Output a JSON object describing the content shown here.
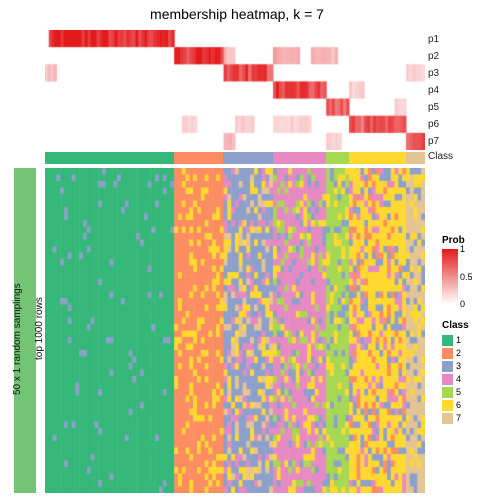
{
  "title": "membership heatmap, k = 7",
  "left_outer_label": "50 x 1 random samplings",
  "left_inner_label": "top 1000 rows",
  "row_labels": [
    "p1",
    "p2",
    "p3",
    "p4",
    "p5",
    "p6",
    "p7",
    "Class"
  ],
  "class_colors": {
    "1": "#35b779",
    "2": "#fc8d62",
    "3": "#8da0cb",
    "4": "#e78ac3",
    "5": "#a6d854",
    "6": "#ffd92f",
    "7": "#e5c494"
  },
  "prob_colorscale": {
    "low": "#ffffff",
    "high": "#e31a1c",
    "ticks": [
      "0",
      "0.5",
      "1"
    ]
  },
  "legend_prob_title": "Prob",
  "legend_class_title": "Class",
  "legend_class_labels": [
    "1",
    "2",
    "3",
    "4",
    "5",
    "6",
    "7"
  ],
  "column_classes": [
    1,
    1,
    1,
    1,
    1,
    1,
    1,
    1,
    1,
    1,
    1,
    1,
    1,
    1,
    1,
    1,
    1,
    1,
    1,
    1,
    1,
    1,
    1,
    1,
    1,
    1,
    1,
    1,
    1,
    1,
    1,
    1,
    1,
    1,
    2,
    2,
    2,
    2,
    2,
    2,
    2,
    2,
    2,
    2,
    2,
    2,
    2,
    3,
    3,
    3,
    3,
    3,
    3,
    3,
    3,
    3,
    3,
    3,
    3,
    3,
    4,
    4,
    4,
    4,
    4,
    4,
    4,
    4,
    4,
    4,
    4,
    4,
    4,
    4,
    5,
    5,
    5,
    5,
    5,
    5,
    6,
    6,
    6,
    6,
    6,
    6,
    6,
    6,
    6,
    6,
    6,
    6,
    6,
    6,
    6,
    7,
    7,
    7,
    7,
    7
  ],
  "membership_rows": [
    [
      {
        "start": 0.01,
        "end": 0.34,
        "val": 1.0
      }
    ],
    [
      {
        "start": 0.34,
        "end": 0.47,
        "val": 0.9
      },
      {
        "start": 0.47,
        "end": 0.5,
        "val": 0.3
      },
      {
        "start": 0.6,
        "end": 0.67,
        "val": 0.4
      },
      {
        "start": 0.7,
        "end": 0.77,
        "val": 0.3
      }
    ],
    [
      {
        "start": 0.0,
        "end": 0.03,
        "val": 0.3
      },
      {
        "start": 0.47,
        "end": 0.6,
        "val": 0.8
      },
      {
        "start": 0.95,
        "end": 1.0,
        "val": 0.2
      }
    ],
    [
      {
        "start": 0.6,
        "end": 0.74,
        "val": 0.8
      },
      {
        "start": 0.8,
        "end": 0.84,
        "val": 0.2
      }
    ],
    [
      {
        "start": 0.74,
        "end": 0.8,
        "val": 0.7
      },
      {
        "start": 0.92,
        "end": 0.95,
        "val": 0.2
      }
    ],
    [
      {
        "start": 0.36,
        "end": 0.4,
        "val": 0.2
      },
      {
        "start": 0.5,
        "end": 0.55,
        "val": 0.2
      },
      {
        "start": 0.6,
        "end": 0.7,
        "val": 0.2
      },
      {
        "start": 0.8,
        "end": 0.95,
        "val": 0.7
      }
    ],
    [
      {
        "start": 0.47,
        "end": 0.5,
        "val": 0.3
      },
      {
        "start": 0.74,
        "end": 0.78,
        "val": 0.2
      },
      {
        "start": 0.95,
        "end": 1.0,
        "val": 0.7
      }
    ]
  ],
  "heatmap": {
    "n_rows": 50,
    "texture_seed": 77,
    "secondary_mix": {
      "1": [
        1,
        3
      ],
      "2": [
        2,
        6
      ],
      "3": [
        3,
        6,
        7,
        4
      ],
      "4": [
        4,
        6,
        3,
        5
      ],
      "5": [
        5,
        6,
        3
      ],
      "6": [
        6,
        3,
        2,
        4
      ],
      "7": [
        7,
        6,
        3
      ]
    },
    "primary_weight": {
      "1": 0.92,
      "2": 0.55,
      "3": 0.4,
      "4": 0.55,
      "5": 0.55,
      "6": 0.45,
      "7": 0.4
    }
  }
}
